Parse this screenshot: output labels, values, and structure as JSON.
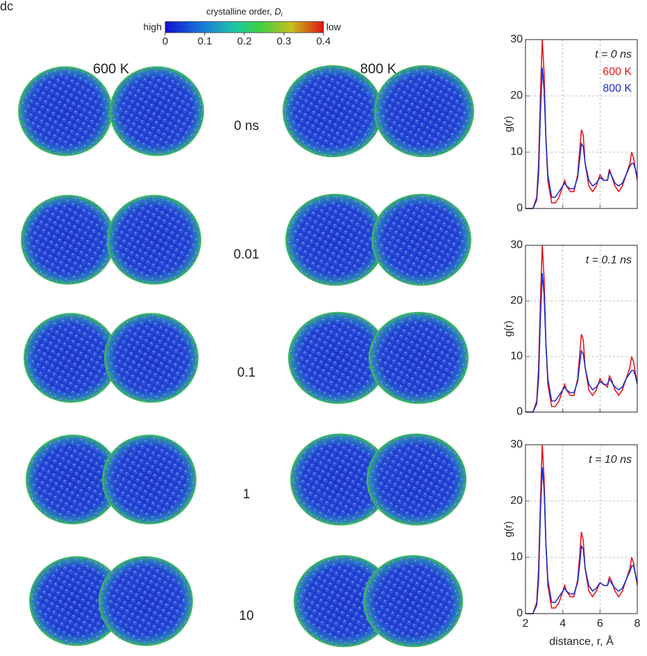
{
  "figure": {
    "panel_label": "dc",
    "colorbar": {
      "title": "crystalline order,",
      "symbol": "D",
      "subscript": "i",
      "left_label": "high",
      "right_label": "low",
      "lim": [
        0,
        0.4
      ],
      "ticks": [
        0,
        0.1,
        0.2,
        0.3,
        0.4
      ]
    },
    "columns": [
      "600 K",
      "800 K"
    ],
    "times": [
      "0 ns",
      "0.01",
      "0.1",
      "1",
      "10"
    ]
  },
  "chart_data": [
    {
      "type": "line",
      "annotation": "t = 0 ns",
      "ylabel": "g(r)",
      "x": [
        2,
        2.4,
        2.6,
        2.7,
        2.8,
        2.9,
        3.0,
        3.1,
        3.2,
        3.4,
        3.6,
        3.8,
        4.0,
        4.1,
        4.2,
        4.4,
        4.6,
        4.8,
        4.9,
        5.0,
        5.1,
        5.2,
        5.4,
        5.6,
        5.8,
        6.0,
        6.2,
        6.4,
        6.5,
        6.6,
        6.8,
        7.0,
        7.2,
        7.4,
        7.6,
        7.7,
        7.8,
        7.9,
        8.0
      ],
      "xlim": [
        2,
        8
      ],
      "xticks": [
        2,
        4,
        6,
        8
      ],
      "xtick_labels": false,
      "ylim": [
        0,
        30
      ],
      "yticks": [
        0,
        10,
        20,
        30
      ],
      "grid": true,
      "series": [
        {
          "name": "600 K",
          "color": "#e8141c",
          "values": [
            0,
            0,
            2,
            8,
            20,
            30,
            24,
            12,
            5,
            1,
            1,
            2,
            4,
            5,
            4,
            3,
            3,
            6,
            10,
            14,
            13,
            8,
            4,
            3,
            4,
            6,
            5,
            5,
            7,
            6,
            4,
            3,
            4,
            6,
            8,
            10,
            9,
            7,
            5
          ]
        },
        {
          "name": "800 K",
          "color": "#1c2fc8",
          "values": [
            0,
            0,
            1.5,
            6,
            17,
            25,
            21,
            12,
            6,
            2,
            2,
            3,
            4,
            4.5,
            4,
            3.5,
            3.5,
            5.5,
            8.5,
            11.5,
            11,
            8,
            5,
            4,
            4.5,
            5.5,
            5,
            5,
            6.5,
            6,
            4.5,
            4,
            4.5,
            6,
            7.5,
            8,
            8,
            7,
            5.5
          ]
        }
      ]
    },
    {
      "type": "line",
      "annotation": "t = 0.1 ns",
      "ylabel": "g(r)",
      "x": [
        2,
        2.4,
        2.6,
        2.7,
        2.8,
        2.9,
        3.0,
        3.1,
        3.2,
        3.4,
        3.6,
        3.8,
        4.0,
        4.1,
        4.2,
        4.4,
        4.6,
        4.8,
        4.9,
        5.0,
        5.1,
        5.2,
        5.4,
        5.6,
        5.8,
        6.0,
        6.2,
        6.4,
        6.5,
        6.6,
        6.8,
        7.0,
        7.2,
        7.4,
        7.6,
        7.7,
        7.8,
        7.9,
        8.0
      ],
      "xlim": [
        2,
        8
      ],
      "xticks": [
        2,
        4,
        6,
        8
      ],
      "xtick_labels": false,
      "ylim": [
        0,
        30
      ],
      "yticks": [
        0,
        10,
        20,
        30
      ],
      "grid": true,
      "series": [
        {
          "color": "#e8141c",
          "values": [
            0,
            0,
            2,
            8,
            20,
            30,
            24,
            12,
            5,
            1,
            1,
            2,
            4,
            5,
            4,
            3,
            3,
            6,
            10,
            14,
            13,
            8,
            4,
            3,
            4,
            6,
            5,
            4.5,
            6.5,
            6,
            4,
            3,
            4,
            6,
            8,
            10,
            9,
            7,
            5
          ]
        },
        {
          "color": "#1c2fc8",
          "values": [
            0,
            0,
            1.5,
            6,
            17,
            25,
            21,
            12,
            6,
            2,
            2,
            3,
            4,
            4.5,
            4,
            3.5,
            3.5,
            5.5,
            8.5,
            11,
            10.5,
            8,
            5,
            4,
            4.5,
            5.5,
            5,
            5,
            6,
            5.5,
            4.5,
            4,
            4.5,
            6,
            7,
            7.5,
            7.5,
            6.5,
            5
          ]
        }
      ]
    },
    {
      "type": "line",
      "annotation": "t = 10 ns",
      "ylabel": "g(r)",
      "xlabel": "distance, r, Å",
      "x": [
        2,
        2.4,
        2.6,
        2.7,
        2.8,
        2.9,
        3.0,
        3.1,
        3.2,
        3.4,
        3.6,
        3.8,
        4.0,
        4.1,
        4.2,
        4.4,
        4.6,
        4.8,
        4.9,
        5.0,
        5.1,
        5.2,
        5.4,
        5.6,
        5.8,
        6.0,
        6.2,
        6.4,
        6.5,
        6.6,
        6.8,
        7.0,
        7.2,
        7.4,
        7.6,
        7.7,
        7.8,
        7.9,
        8.0
      ],
      "xlim": [
        2,
        8
      ],
      "xticks": [
        2,
        4,
        6,
        8
      ],
      "xtick_labels": true,
      "ylim": [
        0,
        30
      ],
      "yticks": [
        0,
        10,
        20,
        30
      ],
      "grid": true,
      "series": [
        {
          "color": "#e8141c",
          "values": [
            0,
            0,
            2,
            8,
            20,
            30,
            24,
            12,
            5,
            1,
            1,
            2,
            4,
            5,
            4,
            3,
            3,
            6,
            10,
            14.5,
            13,
            8,
            4,
            3,
            4,
            5.5,
            5,
            5,
            6.5,
            6,
            4,
            3,
            4,
            6,
            8,
            10,
            9,
            7,
            5
          ]
        },
        {
          "color": "#1c2fc8",
          "values": [
            0,
            0,
            1.5,
            6,
            18,
            26,
            22,
            12,
            6,
            2,
            2,
            3,
            4,
            4.5,
            4,
            3.5,
            3.5,
            5.5,
            8.5,
            12,
            11.5,
            8,
            5,
            4,
            4.5,
            5.5,
            5,
            5,
            6,
            5.5,
            4.5,
            4,
            4.5,
            6,
            7.5,
            8.5,
            8.5,
            7,
            5.5
          ]
        }
      ]
    }
  ]
}
